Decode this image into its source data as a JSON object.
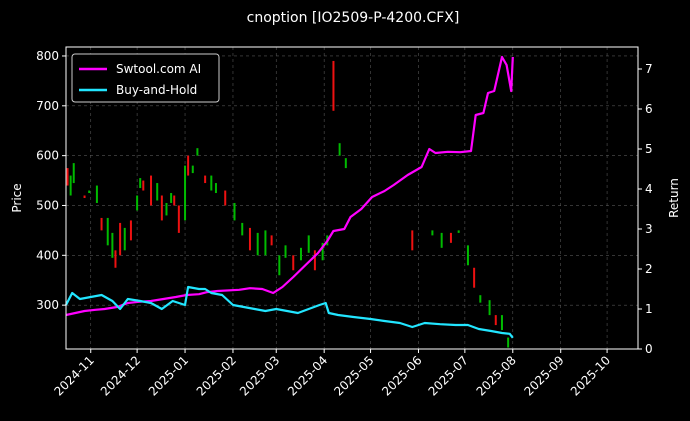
{
  "chart_data": {
    "type": "line",
    "title": "cnoption [IO2509-P-4200.CFX]",
    "xlabel": "",
    "ylabel": "Price",
    "y2label": "Return",
    "x_range": [
      "2024-10-16",
      "2025-10-21"
    ],
    "ylim": [
      212,
      818
    ],
    "y2lim": [
      0,
      7.55
    ],
    "grid": true,
    "legend_position": "top-left",
    "colors": {
      "strategy": "#ff00ff",
      "buyhold": "#22e5ff",
      "up": "#00bb00",
      "down": "#ee1111",
      "background": "#000000",
      "grid": "#555555"
    },
    "x_ticks": [
      "2024-11",
      "2024-12",
      "2025-01",
      "2025-02",
      "2025-03",
      "2025-04",
      "2025-05",
      "2025-06",
      "2025-07",
      "2025-08",
      "2025-09",
      "2025-10"
    ],
    "y_ticks": [
      300,
      400,
      500,
      600,
      700,
      800
    ],
    "y2_ticks": [
      0,
      1,
      2,
      3,
      4,
      5,
      6,
      7
    ],
    "series": [
      {
        "name": "Swtool.com AI",
        "axis": "right",
        "points": [
          [
            "2024-10-16",
            0.85
          ],
          [
            "2024-10-22",
            0.9
          ],
          [
            "2024-10-28",
            0.95
          ],
          [
            "2024-11-04",
            0.98
          ],
          [
            "2024-11-10",
            1.0
          ],
          [
            "2024-11-18",
            1.05
          ],
          [
            "2024-11-25",
            1.15
          ],
          [
            "2024-12-02",
            1.18
          ],
          [
            "2024-12-10",
            1.2
          ],
          [
            "2024-12-18",
            1.25
          ],
          [
            "2024-12-26",
            1.3
          ],
          [
            "2025-01-02",
            1.35
          ],
          [
            "2025-01-10",
            1.37
          ],
          [
            "2025-01-15",
            1.42
          ],
          [
            "2025-01-22",
            1.45
          ],
          [
            "2025-02-05",
            1.48
          ],
          [
            "2025-02-12",
            1.52
          ],
          [
            "2025-02-20",
            1.5
          ],
          [
            "2025-02-27",
            1.4
          ],
          [
            "2025-03-05",
            1.55
          ],
          [
            "2025-03-12",
            1.8
          ],
          [
            "2025-03-20",
            2.1
          ],
          [
            "2025-03-28",
            2.4
          ],
          [
            "2025-04-03",
            2.7
          ],
          [
            "2025-04-07",
            2.95
          ],
          [
            "2025-04-14",
            3.0
          ],
          [
            "2025-04-18",
            3.3
          ],
          [
            "2025-04-25",
            3.5
          ],
          [
            "2025-05-02",
            3.8
          ],
          [
            "2025-05-10",
            3.95
          ],
          [
            "2025-05-16",
            4.1
          ],
          [
            "2025-05-25",
            4.35
          ],
          [
            "2025-06-03",
            4.55
          ],
          [
            "2025-06-08",
            5.0
          ],
          [
            "2025-06-12",
            4.9
          ],
          [
            "2025-06-20",
            4.93
          ],
          [
            "2025-06-28",
            4.92
          ],
          [
            "2025-07-05",
            4.95
          ],
          [
            "2025-07-08",
            5.85
          ],
          [
            "2025-07-13",
            5.9
          ],
          [
            "2025-07-16",
            6.4
          ],
          [
            "2025-07-20",
            6.45
          ],
          [
            "2025-07-25",
            7.3
          ],
          [
            "2025-07-28",
            7.1
          ],
          [
            "2025-07-31",
            6.45
          ],
          [
            "2025-08-01",
            7.3
          ]
        ]
      },
      {
        "name": "Buy-and-Hold",
        "axis": "right",
        "points": [
          [
            "2024-10-16",
            1.1
          ],
          [
            "2024-10-20",
            1.4
          ],
          [
            "2024-10-25",
            1.25
          ],
          [
            "2024-11-01",
            1.3
          ],
          [
            "2024-11-08",
            1.35
          ],
          [
            "2024-11-15",
            1.2
          ],
          [
            "2024-11-20",
            1.0
          ],
          [
            "2024-11-25",
            1.25
          ],
          [
            "2024-12-03",
            1.2
          ],
          [
            "2024-12-10",
            1.15
          ],
          [
            "2024-12-17",
            1.0
          ],
          [
            "2024-12-24",
            1.2
          ],
          [
            "2025-01-01",
            1.1
          ],
          [
            "2025-01-03",
            1.55
          ],
          [
            "2025-01-10",
            1.5
          ],
          [
            "2025-01-14",
            1.5
          ],
          [
            "2025-01-18",
            1.4
          ],
          [
            "2025-01-25",
            1.35
          ],
          [
            "2025-02-01",
            1.1
          ],
          [
            "2025-02-08",
            1.05
          ],
          [
            "2025-02-15",
            1.0
          ],
          [
            "2025-02-22",
            0.95
          ],
          [
            "2025-03-01",
            1.0
          ],
          [
            "2025-03-08",
            0.95
          ],
          [
            "2025-03-15",
            0.9
          ],
          [
            "2025-03-22",
            1.0
          ],
          [
            "2025-03-29",
            1.1
          ],
          [
            "2025-04-02",
            1.15
          ],
          [
            "2025-04-04",
            0.9
          ],
          [
            "2025-04-10",
            0.85
          ],
          [
            "2025-04-20",
            0.8
          ],
          [
            "2025-05-01",
            0.75
          ],
          [
            "2025-05-10",
            0.7
          ],
          [
            "2025-05-20",
            0.65
          ],
          [
            "2025-05-28",
            0.55
          ],
          [
            "2025-06-05",
            0.65
          ],
          [
            "2025-06-15",
            0.62
          ],
          [
            "2025-06-25",
            0.6
          ],
          [
            "2025-07-03",
            0.6
          ],
          [
            "2025-07-10",
            0.5
          ],
          [
            "2025-07-18",
            0.45
          ],
          [
            "2025-07-25",
            0.4
          ],
          [
            "2025-07-30",
            0.38
          ],
          [
            "2025-08-01",
            0.28
          ]
        ]
      }
    ],
    "candles": [
      [
        "2024-10-17",
        540,
        575
      ],
      [
        "2024-10-19",
        520,
        560
      ],
      [
        "2024-10-21",
        545,
        585
      ],
      [
        "2024-10-28",
        515,
        520
      ],
      [
        "2024-10-31",
        525,
        530
      ],
      [
        "2024-11-05",
        505,
        540
      ],
      [
        "2024-11-08",
        450,
        475
      ],
      [
        "2024-11-12",
        420,
        475
      ],
      [
        "2024-11-15",
        395,
        445
      ],
      [
        "2024-11-17",
        375,
        410
      ],
      [
        "2024-11-20",
        400,
        465
      ],
      [
        "2024-11-23",
        410,
        455
      ],
      [
        "2024-11-27",
        430,
        470
      ],
      [
        "2024-12-01",
        490,
        520
      ],
      [
        "2024-12-03",
        535,
        555
      ],
      [
        "2024-12-05",
        530,
        550
      ],
      [
        "2024-12-10",
        500,
        560
      ],
      [
        "2024-12-14",
        510,
        545
      ],
      [
        "2024-12-17",
        470,
        520
      ],
      [
        "2024-12-20",
        480,
        505
      ],
      [
        "2024-12-23",
        505,
        525
      ],
      [
        "2024-12-25",
        500,
        520
      ],
      [
        "2024-12-28",
        445,
        500
      ],
      [
        "2025-01-01",
        470,
        580
      ],
      [
        "2025-01-03",
        560,
        600
      ],
      [
        "2025-01-06",
        565,
        580
      ],
      [
        "2025-01-09",
        600,
        615
      ],
      [
        "2025-01-14",
        545,
        560
      ],
      [
        "2025-01-18",
        530,
        560
      ],
      [
        "2025-01-21",
        525,
        545
      ],
      [
        "2025-01-27",
        500,
        530
      ],
      [
        "2025-02-02",
        470,
        505
      ],
      [
        "2025-02-07",
        440,
        465
      ],
      [
        "2025-02-12",
        410,
        455
      ],
      [
        "2025-02-17",
        400,
        445
      ],
      [
        "2025-02-22",
        400,
        450
      ],
      [
        "2025-02-26",
        420,
        440
      ],
      [
        "2025-03-03",
        360,
        400
      ],
      [
        "2025-03-07",
        395,
        420
      ],
      [
        "2025-03-12",
        370,
        400
      ],
      [
        "2025-03-17",
        390,
        415
      ],
      [
        "2025-03-22",
        405,
        440
      ],
      [
        "2025-03-26",
        370,
        410
      ],
      [
        "2025-03-31",
        390,
        425
      ],
      [
        "2025-04-03",
        420,
        440
      ],
      [
        "2025-04-07",
        690,
        790
      ],
      [
        "2025-04-11",
        600,
        625
      ],
      [
        "2025-04-15",
        575,
        595
      ],
      [
        "2025-05-28",
        410,
        450
      ],
      [
        "2025-06-10",
        440,
        450
      ],
      [
        "2025-06-16",
        415,
        445
      ],
      [
        "2025-06-22",
        425,
        445
      ],
      [
        "2025-06-27",
        445,
        450
      ],
      [
        "2025-07-03",
        380,
        420
      ],
      [
        "2025-07-07",
        335,
        375
      ],
      [
        "2025-07-11",
        305,
        320
      ],
      [
        "2025-07-17",
        280,
        310
      ],
      [
        "2025-07-21",
        260,
        280
      ],
      [
        "2025-07-25",
        250,
        280
      ],
      [
        "2025-07-29",
        215,
        235
      ]
    ]
  }
}
